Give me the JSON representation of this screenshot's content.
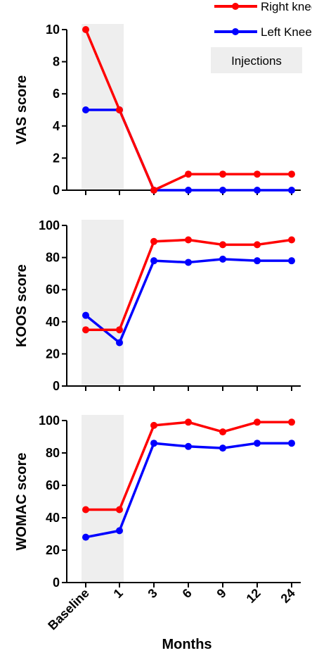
{
  "legend": {
    "entries": [
      {
        "label": "Right knee",
        "color": "#ff0000"
      },
      {
        "label": "Left Knee",
        "color": "#0000ff"
      }
    ],
    "shade_label": "Injections",
    "shade_color": "#eeeeee"
  },
  "x_title": "Months",
  "chart_data": [
    {
      "type": "line",
      "ylabel": "VAS score",
      "categories": [
        "Baseline",
        "1",
        "3",
        "6",
        "9",
        "12",
        "24"
      ],
      "ylim": [
        0,
        10
      ],
      "yticks": [
        "0",
        "2",
        "4",
        "6",
        "8",
        "10"
      ],
      "shaded_categories": [
        "Baseline",
        "1"
      ],
      "series": [
        {
          "name": "Right knee",
          "color": "#ff0000",
          "values": [
            10,
            5,
            0,
            1,
            1,
            1,
            1
          ]
        },
        {
          "name": "Left Knee",
          "color": "#0000ff",
          "values": [
            5,
            5,
            0,
            0,
            0,
            0,
            0
          ]
        }
      ]
    },
    {
      "type": "line",
      "ylabel": "KOOS score",
      "categories": [
        "Baseline",
        "1",
        "3",
        "6",
        "9",
        "12",
        "24"
      ],
      "ylim": [
        0,
        100
      ],
      "yticks": [
        "0",
        "20",
        "40",
        "60",
        "80",
        "100"
      ],
      "shaded_categories": [
        "Baseline",
        "1"
      ],
      "series": [
        {
          "name": "Right knee",
          "color": "#ff0000",
          "values": [
            35,
            35,
            90,
            91,
            88,
            88,
            91
          ]
        },
        {
          "name": "Left Knee",
          "color": "#0000ff",
          "values": [
            44,
            27,
            78,
            77,
            79,
            78,
            78
          ]
        }
      ]
    },
    {
      "type": "line",
      "ylabel": "WOMAC score",
      "categories": [
        "Baseline",
        "1",
        "3",
        "6",
        "9",
        "12",
        "24"
      ],
      "ylim": [
        0,
        100
      ],
      "yticks": [
        "0",
        "20",
        "40",
        "60",
        "80",
        "100"
      ],
      "shaded_categories": [
        "Baseline",
        "1"
      ],
      "series": [
        {
          "name": "Right knee",
          "color": "#ff0000",
          "values": [
            45,
            45,
            97,
            99,
            93,
            99,
            99
          ]
        },
        {
          "name": "Left Knee",
          "color": "#0000ff",
          "values": [
            28,
            32,
            86,
            84,
            83,
            86,
            86
          ]
        }
      ]
    }
  ]
}
